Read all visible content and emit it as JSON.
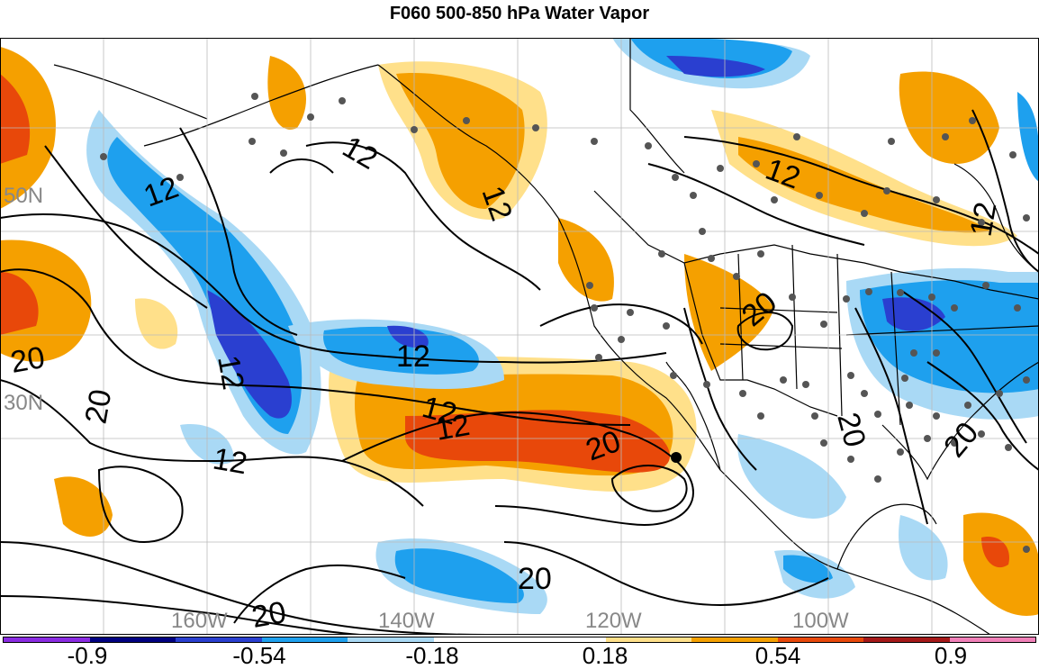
{
  "title": "F060 500-850 hPa Water Vapor",
  "map": {
    "lat_labels": [
      "50N",
      "30N"
    ],
    "lon_labels": [
      "160W",
      "140W",
      "120W",
      "100W"
    ],
    "contour_labels": [
      "12",
      "12",
      "12",
      "12",
      "12",
      "12",
      "12",
      "12",
      "12",
      "12",
      "20",
      "20",
      "20",
      "20",
      "20",
      "20",
      "20",
      "20"
    ]
  },
  "colorbar": {
    "colors": [
      "#8a2be2",
      "#000080",
      "#2a3fd0",
      "#1ea0ee",
      "#a9d9f5",
      "#ffffff",
      "#ffffff",
      "#ffe08a",
      "#f5a000",
      "#e8480a",
      "#a51818",
      "#f080b8"
    ],
    "labels": [
      "-0.9",
      "-0.54",
      "-0.18",
      "0.18",
      "0.54",
      "0.9"
    ]
  }
}
